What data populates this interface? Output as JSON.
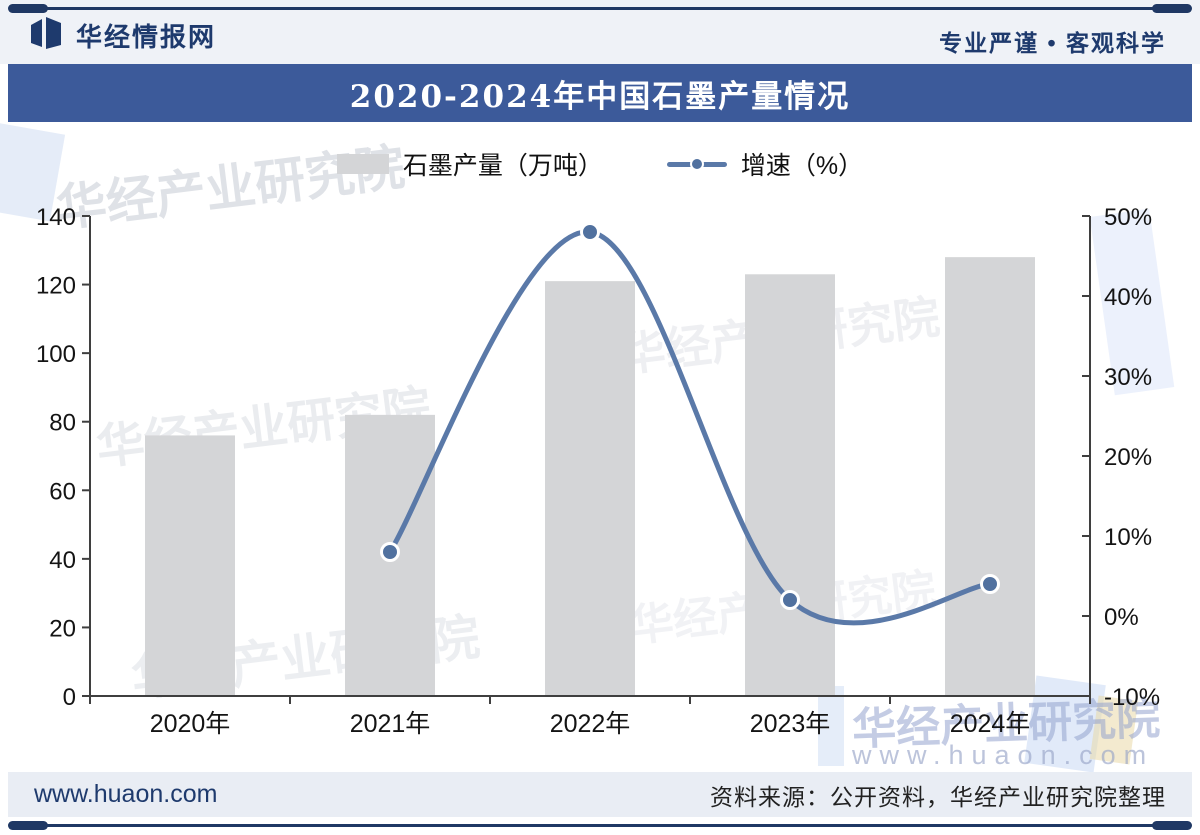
{
  "header": {
    "brand": "华经情报网",
    "tagline": "专业严谨 • 客观科学"
  },
  "title": "2020-2024年中国石墨产量情况",
  "legend": [
    {
      "label": "石墨产量（万吨）",
      "swatch": "bar",
      "color": "#d4d5d7"
    },
    {
      "label": "增速（%）",
      "swatch": "line",
      "color": "#5a79a8"
    }
  ],
  "chart_data": {
    "type": "bar",
    "title": "2020-2024年中国石墨产量情况",
    "categories": [
      "2020年",
      "2021年",
      "2022年",
      "2023年",
      "2024年"
    ],
    "series": [
      {
        "name": "石墨产量（万吨）",
        "type": "bar",
        "axis": "left",
        "values": [
          76,
          82,
          121,
          123,
          128
        ]
      },
      {
        "name": "增速（%）",
        "type": "line",
        "axis": "right",
        "values": [
          null,
          8,
          48,
          2,
          4
        ]
      }
    ],
    "left_axis": {
      "min": 0,
      "max": 140,
      "step": 20,
      "ticks": [
        "0",
        "20",
        "40",
        "60",
        "80",
        "100",
        "120",
        "140"
      ]
    },
    "right_axis": {
      "min": -10,
      "max": 50,
      "step": 10,
      "ticks": [
        "-10%",
        "0%",
        "10%",
        "20%",
        "30%",
        "40%",
        "50%"
      ]
    },
    "grid": false,
    "legend_position": "top",
    "bar_color": "#d4d5d7",
    "line_color": "#5a79a8",
    "dot_color": "#51719f"
  },
  "watermarks": {
    "ghost_text": "华经产业研究院",
    "corner_text": "华经产业研究院",
    "corner_url": "www.huaon.com"
  },
  "footer": {
    "site": "www.huaon.com",
    "source": "资料来源：公开资料，华经产业研究院整理"
  },
  "colors": {
    "title_bar": "#3c5a9a",
    "navy": "#1e3a6d",
    "rule": "#1f3864",
    "axis": "#3f3f3f"
  }
}
